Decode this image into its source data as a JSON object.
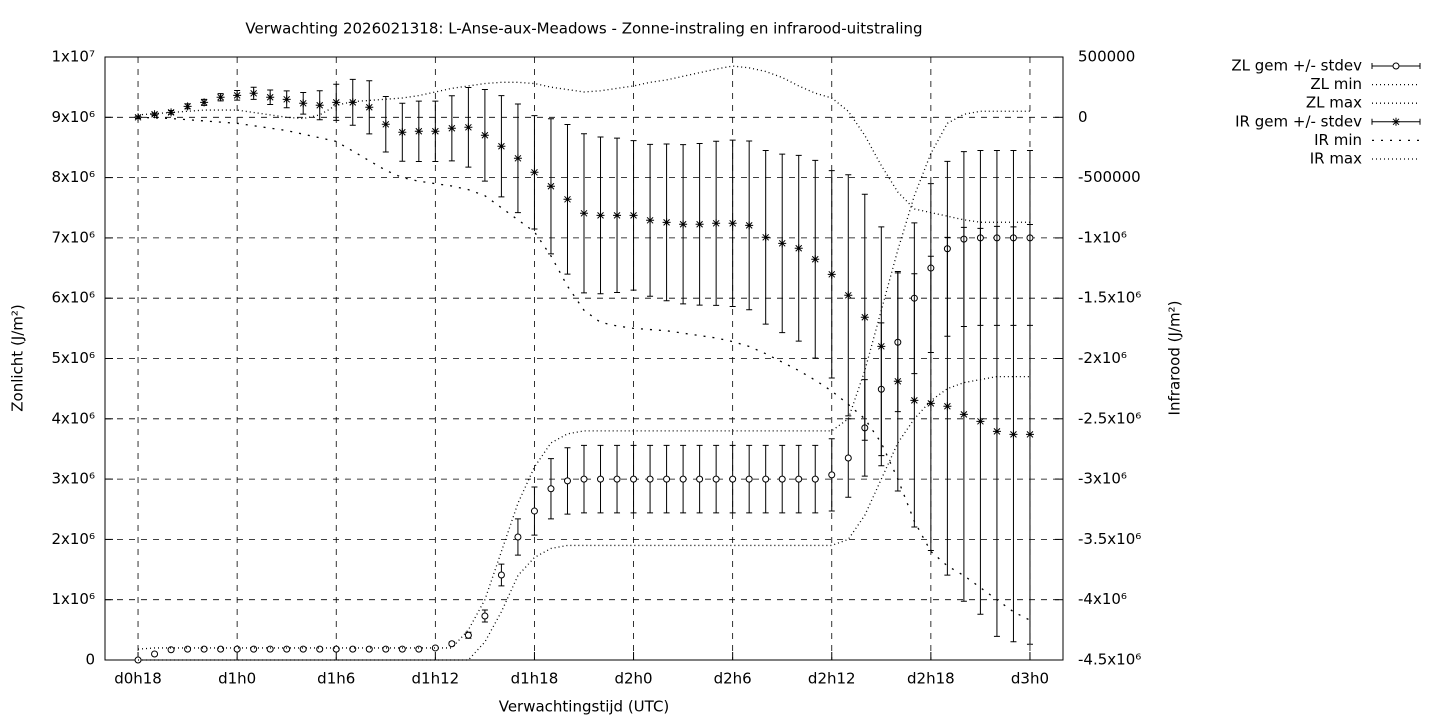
{
  "chart_data": {
    "type": "errorbar-line",
    "title": "Verwachting 2026021318: L-Anse-aux-Meadows - Zonne-instraling en infrarood-uitstraling",
    "xlabel": "Verwachtingstijd (UTC)",
    "ylabel": "Zonlicht (J/m²)",
    "y2label": "Infrarood (J/m²)",
    "grid": true,
    "legend": "outside-top-right",
    "xlim": [
      16,
      74
    ],
    "xticks": [
      {
        "value": 18,
        "label": "d0h18"
      },
      {
        "value": 24,
        "label": "d1h0"
      },
      {
        "value": 30,
        "label": "d1h6"
      },
      {
        "value": 36,
        "label": "d1h12"
      },
      {
        "value": 42,
        "label": "d1h18"
      },
      {
        "value": 48,
        "label": "d2h0"
      },
      {
        "value": 54,
        "label": "d2h6"
      },
      {
        "value": 60,
        "label": "d2h12"
      },
      {
        "value": 66,
        "label": "d2h18"
      },
      {
        "value": 72,
        "label": "d3h0"
      }
    ],
    "ylim": [
      0,
      10000000
    ],
    "yticks": [
      0,
      {
        "value": 1000000,
        "label": "1x10⁶"
      },
      {
        "value": 2000000,
        "label": "2x10⁶"
      },
      {
        "value": 3000000,
        "label": "3x10⁶"
      },
      {
        "value": 4000000,
        "label": "4x10⁶"
      },
      {
        "value": 5000000,
        "label": "5x10⁶"
      },
      {
        "value": 6000000,
        "label": "6x10⁶"
      },
      {
        "value": 7000000,
        "label": "7x10⁶"
      },
      {
        "value": 8000000,
        "label": "8x10⁶"
      },
      {
        "value": 9000000,
        "label": "9x10⁶"
      },
      {
        "value": 10000000,
        "label": "1x10⁷"
      }
    ],
    "y2lim": [
      -4500000,
      500000
    ],
    "y2ticks": [
      {
        "value": -4500000,
        "label": "-4.5x10⁶"
      },
      {
        "value": -4000000,
        "label": "-4x10⁶"
      },
      {
        "value": -3500000,
        "label": "-3.5x10⁶"
      },
      {
        "value": -3000000,
        "label": "-3x10⁶"
      },
      {
        "value": -2500000,
        "label": "-2.5x10⁶"
      },
      {
        "value": -2000000,
        "label": "-2x10⁶"
      },
      {
        "value": -1500000,
        "label": "-1.5x10⁶"
      },
      {
        "value": -1000000,
        "label": "-1x10⁶"
      },
      -500000,
      0,
      500000
    ],
    "x": [
      18,
      19,
      20,
      21,
      22,
      23,
      24,
      25,
      26,
      27,
      28,
      29,
      30,
      31,
      32,
      33,
      34,
      35,
      36,
      37,
      38,
      39,
      40,
      41,
      42,
      43,
      44,
      45,
      46,
      47,
      48,
      49,
      50,
      51,
      52,
      53,
      54,
      55,
      56,
      57,
      58,
      59,
      60,
      61,
      62,
      63,
      64,
      65,
      66,
      67,
      68,
      69,
      70,
      71,
      72
    ],
    "series": [
      {
        "name": "ZL gem +/- stdev",
        "color": "#000000",
        "marker": "circle",
        "axis": "y",
        "values": [
          0,
          100000,
          170000,
          180000,
          180000,
          180000,
          180000,
          180000,
          180000,
          180000,
          180000,
          180000,
          180000,
          180000,
          180000,
          180000,
          180000,
          180000,
          200000,
          270000,
          410000,
          730000,
          1410000,
          2040000,
          2470000,
          2840000,
          2970000,
          3000000,
          3000000,
          3000000,
          3000000,
          3000000,
          3000000,
          3000000,
          3000000,
          3000000,
          3000000,
          3000000,
          3000000,
          3000000,
          3000000,
          3000000,
          3070000,
          3350000,
          3850000,
          4490000,
          5270000,
          6000000,
          6500000,
          6820000,
          6980000,
          7000000,
          7000000,
          7000000,
          7000000
        ],
        "errors": [
          20000,
          20000,
          20000,
          20000,
          20000,
          20000,
          20000,
          20000,
          20000,
          20000,
          20000,
          20000,
          20000,
          20000,
          20000,
          20000,
          20000,
          20000,
          20000,
          30000,
          50000,
          100000,
          180000,
          300000,
          400000,
          500000,
          550000,
          560000,
          560000,
          560000,
          560000,
          560000,
          560000,
          560000,
          560000,
          560000,
          560000,
          560000,
          560000,
          560000,
          560000,
          560000,
          600000,
          650000,
          800000,
          1100000,
          1150000,
          1250000,
          1400000,
          1450000,
          1450000,
          1450000,
          1450000,
          1450000,
          1450000
        ]
      },
      {
        "name": "ZL min",
        "color": "#000000",
        "line": "dotted",
        "axis": "y",
        "values": [
          0,
          0,
          0,
          0,
          0,
          0,
          0,
          0,
          0,
          0,
          0,
          0,
          0,
          0,
          0,
          0,
          0,
          0,
          0,
          0,
          0,
          300000,
          800000,
          1400000,
          1700000,
          1850000,
          1900000,
          1900000,
          1900000,
          1900000,
          1900000,
          1900000,
          1900000,
          1900000,
          1900000,
          1900000,
          1900000,
          1900000,
          1900000,
          1900000,
          1900000,
          1900000,
          1900000,
          2000000,
          2400000,
          3000000,
          3600000,
          4000000,
          4300000,
          4500000,
          4600000,
          4650000,
          4700000,
          4700000,
          4700000
        ]
      },
      {
        "name": "ZL max",
        "color": "#000000",
        "line": "dotted",
        "axis": "y",
        "values": [
          180000,
          200000,
          200000,
          200000,
          200000,
          200000,
          200000,
          200000,
          200000,
          200000,
          200000,
          200000,
          200000,
          200000,
          200000,
          200000,
          200000,
          200000,
          200000,
          200000,
          500000,
          1000000,
          1800000,
          2600000,
          3200000,
          3600000,
          3750000,
          3800000,
          3800000,
          3800000,
          3800000,
          3800000,
          3800000,
          3800000,
          3800000,
          3800000,
          3800000,
          3800000,
          3800000,
          3800000,
          3800000,
          3800000,
          3800000,
          4000000,
          4800000,
          5800000,
          6800000,
          7700000,
          8400000,
          8900000,
          9050000,
          9100000,
          9100000,
          9100000,
          9100000
        ]
      },
      {
        "name": "IR gem +/- stdev",
        "color": "#000000",
        "marker": "star",
        "axis": "y2",
        "values": [
          0,
          25000,
          41000,
          91000,
          124000,
          166000,
          182000,
          199000,
          166000,
          149000,
          116000,
          100000,
          124000,
          124000,
          83000,
          -58000,
          -124000,
          -116000,
          -116000,
          -91000,
          -83000,
          -149000,
          -240000,
          -340000,
          -456000,
          -572000,
          -680000,
          -796000,
          -813000,
          -813000,
          -813000,
          -854000,
          -871000,
          -887000,
          -887000,
          -879000,
          -879000,
          -896000,
          -995000,
          -1045000,
          -1086000,
          -1177000,
          -1302000,
          -1476000,
          -1658000,
          -1899000,
          -2189000,
          -2347000,
          -2372000,
          -2396000,
          -2463000,
          -2521000,
          -2604000,
          -2629000,
          -2629000
        ],
        "errors": [
          10000,
          10000,
          15000,
          20000,
          25000,
          30000,
          40000,
          50000,
          60000,
          70000,
          90000,
          120000,
          150000,
          190000,
          220000,
          230000,
          240000,
          250000,
          250000,
          270000,
          330000,
          380000,
          420000,
          450000,
          470000,
          560000,
          620000,
          660000,
          650000,
          640000,
          620000,
          630000,
          650000,
          660000,
          670000,
          680000,
          690000,
          700000,
          720000,
          740000,
          770000,
          820000,
          860000,
          1000000,
          1020000,
          990000,
          910000,
          1050000,
          1220000,
          1400000,
          1550000,
          1600000,
          1700000,
          1720000,
          1740000
        ]
      },
      {
        "name": "IR min",
        "color": "#000000",
        "line": "sparse-dotted",
        "axis": "y2",
        "values": [
          0,
          -5000,
          -10000,
          -20000,
          -30000,
          -40000,
          -50000,
          -70000,
          -90000,
          -110000,
          -140000,
          -170000,
          -200000,
          -280000,
          -360000,
          -440000,
          -500000,
          -530000,
          -550000,
          -570000,
          -600000,
          -650000,
          -750000,
          -850000,
          -950000,
          -1150000,
          -1400000,
          -1600000,
          -1700000,
          -1730000,
          -1750000,
          -1760000,
          -1770000,
          -1790000,
          -1810000,
          -1830000,
          -1860000,
          -1900000,
          -1960000,
          -2030000,
          -2100000,
          -2180000,
          -2270000,
          -2380000,
          -2500000,
          -2700000,
          -3000000,
          -3350000,
          -3600000,
          -3720000,
          -3800000,
          -3900000,
          -4000000,
          -4100000,
          -4170000
        ]
      },
      {
        "name": "IR max",
        "color": "#000000",
        "line": "dotted",
        "axis": "y2",
        "values": [
          20000,
          30000,
          40000,
          50000,
          60000,
          60000,
          60000,
          40000,
          20000,
          0,
          -10000,
          20000,
          100000,
          130000,
          140000,
          150000,
          160000,
          180000,
          210000,
          240000,
          260000,
          280000,
          290000,
          290000,
          280000,
          250000,
          230000,
          210000,
          220000,
          240000,
          260000,
          290000,
          310000,
          340000,
          370000,
          400000,
          425000,
          410000,
          380000,
          330000,
          260000,
          200000,
          160000,
          50000,
          -150000,
          -400000,
          -620000,
          -760000,
          -790000,
          -820000,
          -850000,
          -870000,
          -870000,
          -870000,
          -870000
        ]
      }
    ]
  }
}
